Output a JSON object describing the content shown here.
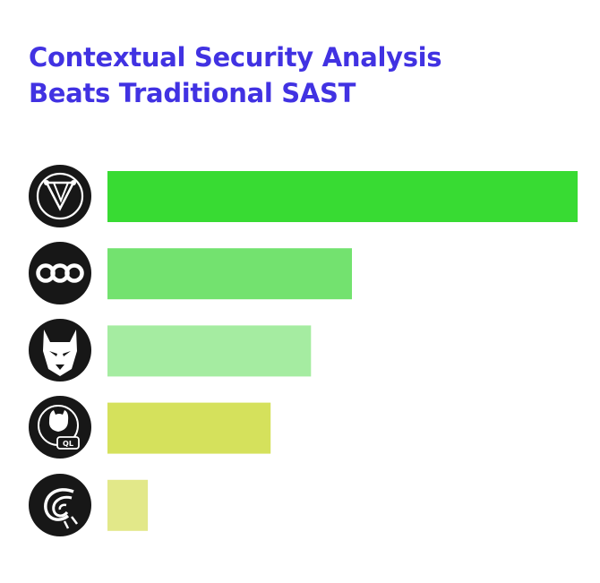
{
  "title_lines": [
    "Contextual Security Analysis",
    "Beats Traditional SAST"
  ],
  "chart_data": {
    "type": "bar",
    "orientation": "horizontal",
    "title": "Contextual Security Analysis Beats Traditional SAST",
    "categories": [
      "tool-1-logo",
      "tool-2-logo",
      "tool-3-logo",
      "tool-4-logo",
      "tool-5-logo"
    ],
    "values": [
      100,
      52,
      43.3,
      34.7,
      8.6
    ],
    "xlim": [
      0,
      100
    ],
    "xlabel": "",
    "ylabel": "",
    "grid": false,
    "axis_ticks_shown": false,
    "colors": [
      "#38db33",
      "#73e26f",
      "#a5eca1",
      "#d5e15c",
      "#e2e889"
    ],
    "icons": [
      "v-shield-logo-icon",
      "three-rings-logo-icon",
      "doberman-logo-icon",
      "octocat-ql-logo-icon",
      "swirl-logo-icon"
    ]
  }
}
